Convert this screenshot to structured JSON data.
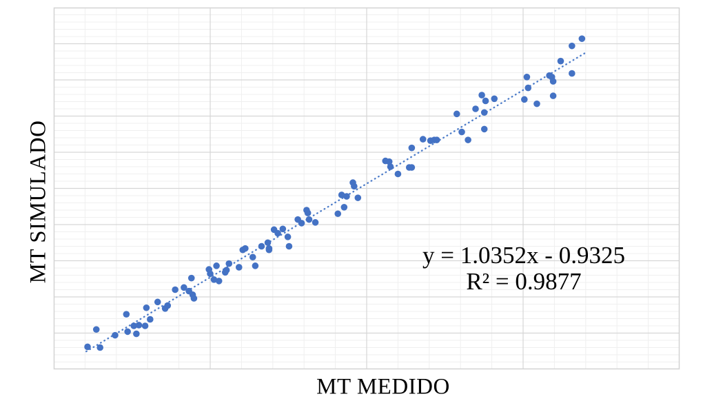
{
  "chart_data": {
    "type": "scatter",
    "title": "",
    "xlabel": "MT MEDIDO",
    "ylabel": "MT SIMULADO",
    "xlim": [
      20,
      70
    ],
    "ylim": [
      20,
      70
    ],
    "x_minor_step": 2.5,
    "x_major_step": 12.5,
    "y_minor_step": 1,
    "y_major_step": 5,
    "tick_labels_visible": false,
    "legend": "none",
    "grid": "major and minor gridlines, both axes",
    "trendline": {
      "type": "linear",
      "slope": 1.0352,
      "intercept": -0.9325,
      "x_start": 22.6,
      "x_end": 62.4,
      "style": "dotted",
      "label": "y = 1.0352x - 0.9325",
      "r2_label": "R² = 0.9877"
    },
    "points": [
      [
        22.7,
        23.1
      ],
      [
        23.7,
        23.0
      ],
      [
        23.4,
        25.5
      ],
      [
        24.9,
        24.7
      ],
      [
        25.8,
        27.6
      ],
      [
        25.9,
        25.2
      ],
      [
        26.4,
        26.0
      ],
      [
        26.6,
        24.9
      ],
      [
        26.8,
        26.1
      ],
      [
        27.3,
        26.0
      ],
      [
        27.4,
        28.5
      ],
      [
        27.7,
        26.9
      ],
      [
        28.3,
        29.3
      ],
      [
        28.9,
        28.4
      ],
      [
        29.1,
        28.8
      ],
      [
        29.7,
        31.0
      ],
      [
        30.4,
        31.3
      ],
      [
        30.8,
        30.8
      ],
      [
        31.0,
        32.6
      ],
      [
        31.1,
        30.3
      ],
      [
        31.2,
        29.8
      ],
      [
        32.4,
        33.8
      ],
      [
        32.5,
        33.2
      ],
      [
        32.8,
        32.4
      ],
      [
        33.0,
        34.3
      ],
      [
        33.2,
        32.2
      ],
      [
        33.7,
        33.4
      ],
      [
        33.8,
        33.7
      ],
      [
        34.0,
        34.6
      ],
      [
        34.8,
        34.1
      ],
      [
        35.1,
        36.5
      ],
      [
        35.3,
        36.7
      ],
      [
        35.9,
        35.5
      ],
      [
        36.1,
        34.3
      ],
      [
        36.6,
        37.0
      ],
      [
        37.1,
        37.5
      ],
      [
        37.2,
        36.7
      ],
      [
        37.2,
        36.5
      ],
      [
        37.6,
        39.3
      ],
      [
        37.9,
        38.8
      ],
      [
        38.3,
        39.4
      ],
      [
        38.7,
        38.3
      ],
      [
        38.8,
        37.0
      ],
      [
        39.5,
        40.7
      ],
      [
        39.8,
        40.2
      ],
      [
        40.2,
        42.0
      ],
      [
        40.3,
        41.6
      ],
      [
        40.4,
        40.7
      ],
      [
        40.9,
        40.3
      ],
      [
        42.7,
        41.5
      ],
      [
        43.0,
        44.1
      ],
      [
        43.2,
        42.4
      ],
      [
        43.4,
        43.9
      ],
      [
        43.9,
        45.8
      ],
      [
        44.0,
        45.3
      ],
      [
        44.3,
        43.7
      ],
      [
        46.5,
        48.8
      ],
      [
        46.8,
        48.7
      ],
      [
        46.9,
        48.0
      ],
      [
        47.5,
        47.0
      ],
      [
        48.4,
        47.9
      ],
      [
        48.6,
        50.6
      ],
      [
        48.6,
        47.9
      ],
      [
        49.5,
        51.8
      ],
      [
        50.1,
        51.6
      ],
      [
        50.4,
        51.7
      ],
      [
        50.6,
        51.7
      ],
      [
        52.2,
        55.3
      ],
      [
        52.6,
        52.8
      ],
      [
        53.1,
        51.7
      ],
      [
        53.7,
        56.0
      ],
      [
        54.2,
        57.9
      ],
      [
        54.4,
        55.5
      ],
      [
        54.4,
        53.2
      ],
      [
        54.5,
        57.1
      ],
      [
        55.2,
        57.4
      ],
      [
        57.6,
        57.3
      ],
      [
        57.8,
        60.4
      ],
      [
        57.9,
        58.9
      ],
      [
        58.6,
        56.7
      ],
      [
        59.6,
        60.6
      ],
      [
        59.8,
        60.4
      ],
      [
        59.9,
        59.8
      ],
      [
        59.9,
        57.8
      ],
      [
        60.5,
        62.6
      ],
      [
        61.4,
        60.9
      ],
      [
        61.4,
        64.7
      ],
      [
        62.2,
        65.7
      ]
    ],
    "colors": {
      "point": "#4472C4",
      "trendline": "#4E7DC9",
      "grid_minor": "#EFEFEF",
      "grid_major": "#D6D6D6",
      "border": "#D3D3D3",
      "text": "#000000"
    },
    "point_radius_px": 4.8
  }
}
